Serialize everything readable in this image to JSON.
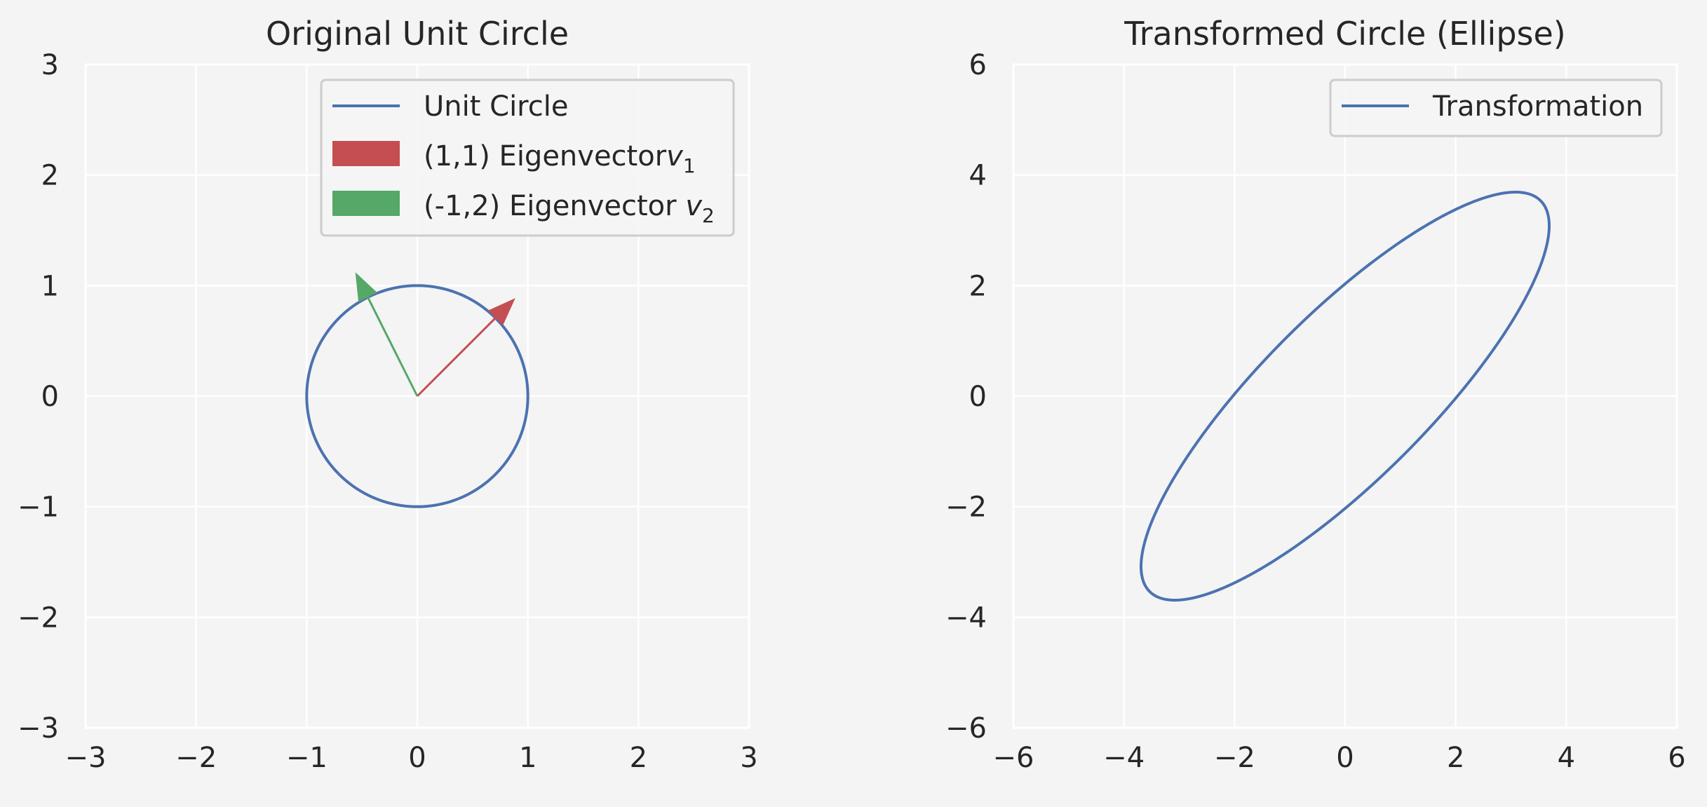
{
  "chart_data": [
    {
      "type": "line",
      "title": "Original Unit Circle",
      "xlim": [
        -3,
        3
      ],
      "ylim": [
        -3,
        3
      ],
      "xticks": [
        -3,
        -2,
        -1,
        0,
        1,
        2,
        3
      ],
      "yticks": [
        -3,
        -2,
        -1,
        0,
        1,
        2,
        3
      ],
      "xtick_labels": [
        "−3",
        "−2",
        "−1",
        "0",
        "1",
        "2",
        "3"
      ],
      "ytick_labels": [
        "−3",
        "−2",
        "−1",
        "0",
        "1",
        "2",
        "3"
      ],
      "grid": true,
      "legend_position": "upper right",
      "series": [
        {
          "name": "Unit Circle",
          "kind": "parametric-circle",
          "center": [
            0,
            0
          ],
          "radius": 1,
          "color": "#4c72b0"
        }
      ],
      "arrows": [
        {
          "name": "(1,1) Eigenvector",
          "subscript": "1",
          "label_prefix": "(1,1) Eigenvector",
          "label_var": "v",
          "from": [
            0,
            0
          ],
          "to": [
            0.707,
            0.707
          ],
          "color": "#c44e52"
        },
        {
          "name": "(-1,2) Eigenvector",
          "subscript": "2",
          "label_prefix": "(-1,2) Eigenvector ",
          "label_var": "v",
          "from": [
            0,
            0
          ],
          "to": [
            -0.447,
            0.894
          ],
          "color": "#55a868"
        }
      ]
    },
    {
      "type": "line",
      "title": "Transformed Circle (Ellipse)",
      "xlim": [
        -6,
        6
      ],
      "ylim": [
        -6,
        6
      ],
      "xticks": [
        -6,
        -4,
        -2,
        0,
        2,
        4,
        6
      ],
      "yticks": [
        -6,
        -4,
        -2,
        0,
        2,
        4,
        6
      ],
      "xtick_labels": [
        "−6",
        "−4",
        "−2",
        "0",
        "2",
        "4",
        "6"
      ],
      "ytick_labels": [
        "−6",
        "−4",
        "−2",
        "0",
        "2",
        "4",
        "6"
      ],
      "grid": true,
      "legend_position": "upper right",
      "series": [
        {
          "name": "Transformation",
          "kind": "ellipse",
          "semi_axes": [
            5,
            1.5
          ],
          "rotation_deg": 45,
          "color": "#4c72b0"
        }
      ]
    }
  ]
}
